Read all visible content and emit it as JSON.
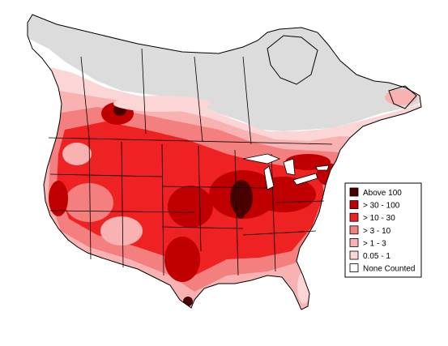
{
  "legend": {
    "title": "",
    "items": [
      {
        "label": "Above 100",
        "color": "#4a0000"
      },
      {
        "label": "> 30 - 100",
        "color": "#c00000"
      },
      {
        "label": "> 10 - 30",
        "color": "#ee2222"
      },
      {
        "label": "> 3 - 10",
        "color": "#f47f7f"
      },
      {
        "label": "> 1 - 3",
        "color": "#f9b2b2"
      },
      {
        "label": "0.05 - 1",
        "color": "#fcd6d6"
      },
      {
        "label": "None Counted",
        "color": "#ffffff"
      }
    ]
  },
  "colors": {
    "no_data": "#dcdcdc",
    "outline": "#000000"
  }
}
